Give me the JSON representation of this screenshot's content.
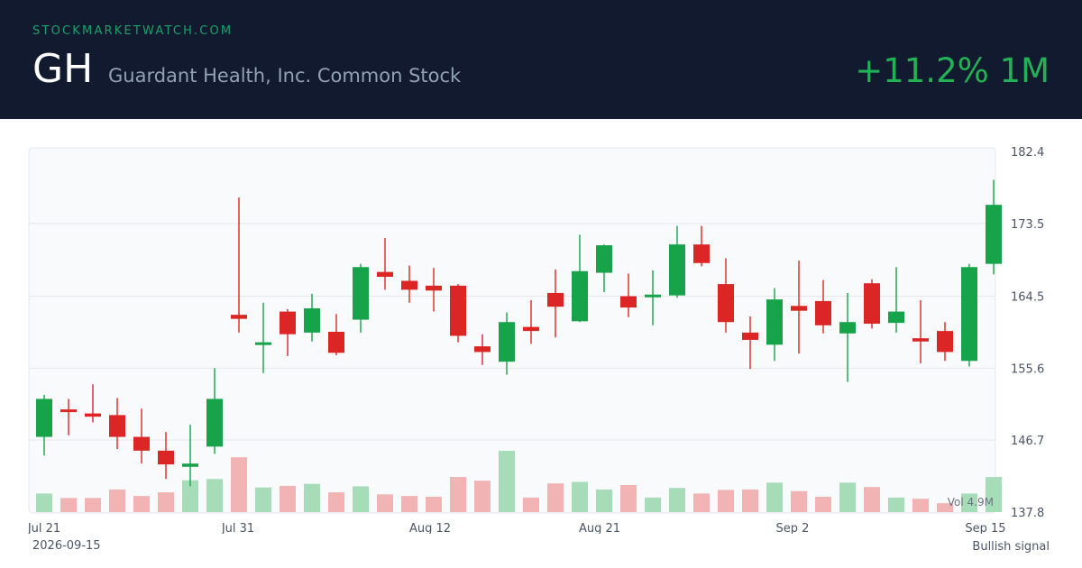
{
  "header": {
    "site": "STOCKMARKETWATCH.COM",
    "ticker": "GH",
    "company": "Guardant Health, Inc. Common Stock",
    "change": "+11.2% 1M",
    "change_color": "#22b155"
  },
  "footer": {
    "date": "2026-09-15",
    "signal": "Bullish signal"
  },
  "colors": {
    "up": "#16a34a",
    "down": "#dc2626",
    "vol_up": "#a7dcb9",
    "vol_down": "#f1b3b3"
  },
  "chart_data": {
    "type": "candlestick",
    "y_ticks": [
      "182.4",
      "173.5",
      "164.5",
      "155.6",
      "146.7",
      "137.8"
    ],
    "ylim": [
      137.8,
      182.4
    ],
    "x_labels": [
      {
        "index": 0,
        "label": "Jul 21"
      },
      {
        "index": 8,
        "label": "Jul 31"
      },
      {
        "index": 16,
        "label": "Aug 12"
      },
      {
        "index": 23,
        "label": "Aug 21"
      },
      {
        "index": 31,
        "label": "Sep 2"
      },
      {
        "index": 39,
        "label": "Sep 15"
      }
    ],
    "volume_label": "Vol 4.9M",
    "candles": [
      {
        "o": 147.1,
        "h": 152.3,
        "l": 144.8,
        "c": 151.8,
        "v": 0.46
      },
      {
        "o": 150.5,
        "h": 151.8,
        "l": 147.3,
        "c": 150.4,
        "v": 0.35
      },
      {
        "o": 150.0,
        "h": 153.6,
        "l": 148.9,
        "c": 149.6,
        "v": 0.35
      },
      {
        "o": 149.8,
        "h": 151.9,
        "l": 145.6,
        "c": 147.1,
        "v": 0.56
      },
      {
        "o": 147.1,
        "h": 150.6,
        "l": 143.8,
        "c": 145.4,
        "v": 0.4
      },
      {
        "o": 145.4,
        "h": 147.7,
        "l": 141.9,
        "c": 143.7,
        "v": 0.49
      },
      {
        "o": 143.4,
        "h": 148.6,
        "l": 141.0,
        "c": 143.8,
        "v": 0.79
      },
      {
        "o": 145.9,
        "h": 155.6,
        "l": 145.0,
        "c": 151.8,
        "v": 0.82
      },
      {
        "o": 162.2,
        "h": 176.7,
        "l": 160.0,
        "c": 161.7,
        "v": 1.36
      },
      {
        "o": 158.5,
        "h": 163.7,
        "l": 155.0,
        "c": 158.8,
        "v": 0.61
      },
      {
        "o": 162.6,
        "h": 162.9,
        "l": 157.1,
        "c": 159.8,
        "v": 0.65
      },
      {
        "o": 160.0,
        "h": 164.8,
        "l": 158.9,
        "c": 163.0,
        "v": 0.7
      },
      {
        "o": 160.1,
        "h": 162.3,
        "l": 157.2,
        "c": 157.5,
        "v": 0.49
      },
      {
        "o": 161.6,
        "h": 168.5,
        "l": 160.0,
        "c": 168.1,
        "v": 0.64
      },
      {
        "o": 167.5,
        "h": 171.7,
        "l": 165.3,
        "c": 166.9,
        "v": 0.44
      },
      {
        "o": 166.4,
        "h": 168.3,
        "l": 163.7,
        "c": 165.3,
        "v": 0.4
      },
      {
        "o": 165.8,
        "h": 168.0,
        "l": 162.6,
        "c": 165.2,
        "v": 0.38
      },
      {
        "o": 165.8,
        "h": 166.0,
        "l": 158.8,
        "c": 159.6,
        "v": 0.87
      },
      {
        "o": 158.3,
        "h": 159.8,
        "l": 156.0,
        "c": 157.6,
        "v": 0.78
      },
      {
        "o": 156.4,
        "h": 162.5,
        "l": 154.8,
        "c": 161.3,
        "v": 1.52
      },
      {
        "o": 160.7,
        "h": 164.0,
        "l": 158.6,
        "c": 160.2,
        "v": 0.36
      },
      {
        "o": 164.9,
        "h": 167.8,
        "l": 159.4,
        "c": 163.2,
        "v": 0.71
      },
      {
        "o": 161.4,
        "h": 172.1,
        "l": 161.3,
        "c": 167.6,
        "v": 0.75
      },
      {
        "o": 167.4,
        "h": 170.9,
        "l": 165.0,
        "c": 170.8,
        "v": 0.56
      },
      {
        "o": 164.5,
        "h": 167.3,
        "l": 161.9,
        "c": 163.1,
        "v": 0.67
      },
      {
        "o": 164.5,
        "h": 167.7,
        "l": 160.9,
        "c": 164.7,
        "v": 0.36
      },
      {
        "o": 164.6,
        "h": 173.2,
        "l": 164.3,
        "c": 170.9,
        "v": 0.6
      },
      {
        "o": 170.9,
        "h": 173.2,
        "l": 168.2,
        "c": 168.6,
        "v": 0.46
      },
      {
        "o": 166.0,
        "h": 169.2,
        "l": 160.0,
        "c": 161.3,
        "v": 0.55
      },
      {
        "o": 160.0,
        "h": 162.0,
        "l": 155.5,
        "c": 159.1,
        "v": 0.56
      },
      {
        "o": 158.5,
        "h": 165.5,
        "l": 156.5,
        "c": 164.1,
        "v": 0.73
      },
      {
        "o": 163.3,
        "h": 168.9,
        "l": 157.4,
        "c": 162.7,
        "v": 0.52
      },
      {
        "o": 163.9,
        "h": 166.5,
        "l": 159.9,
        "c": 160.9,
        "v": 0.38
      },
      {
        "o": 159.9,
        "h": 164.9,
        "l": 153.9,
        "c": 161.3,
        "v": 0.73
      },
      {
        "o": 166.1,
        "h": 166.6,
        "l": 160.5,
        "c": 161.1,
        "v": 0.62
      },
      {
        "o": 161.2,
        "h": 168.1,
        "l": 160.0,
        "c": 162.6,
        "v": 0.36
      },
      {
        "o": 159.3,
        "h": 164.0,
        "l": 156.2,
        "c": 158.9,
        "v": 0.33
      },
      {
        "o": 160.2,
        "h": 161.3,
        "l": 156.5,
        "c": 157.6,
        "v": 0.22
      },
      {
        "o": 156.5,
        "h": 168.5,
        "l": 155.8,
        "c": 168.1,
        "v": 0.46
      },
      {
        "o": 168.5,
        "h": 178.9,
        "l": 167.2,
        "c": 175.8,
        "v": 0.87
      }
    ]
  }
}
